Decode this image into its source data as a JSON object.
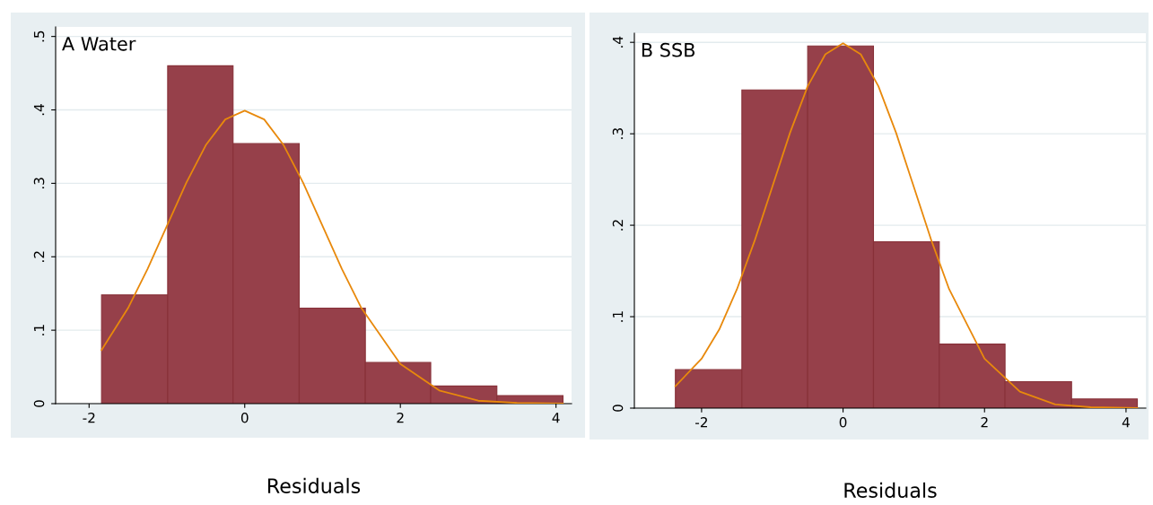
{
  "chart_data": [
    {
      "type": "histogram",
      "title": "A Water",
      "xlabel": "Residuals",
      "color": "#96404a",
      "bins": [
        -1.84,
        -0.99,
        -0.15,
        0.7,
        1.55,
        2.39,
        3.24,
        4.09
      ],
      "values": [
        0.148,
        0.46,
        0.354,
        0.13,
        0.056,
        0.024,
        0.011
      ],
      "series": [
        {
          "type": "line",
          "color": "#e8890c",
          "x": [
            -1.84,
            -1.5,
            -1.25,
            -1,
            -0.75,
            -0.5,
            -0.25,
            0,
            0.25,
            0.5,
            0.75,
            1,
            1.25,
            1.5,
            2,
            2.5,
            3,
            3.5,
            4.09
          ],
          "values": [
            0.073,
            0.13,
            0.183,
            0.242,
            0.301,
            0.352,
            0.387,
            0.399,
            0.387,
            0.352,
            0.301,
            0.242,
            0.183,
            0.13,
            0.054,
            0.018,
            0.004,
            0.001,
            0.0
          ]
        }
      ],
      "xlim": [
        -2.43,
        4.2
      ],
      "ylim": [
        0,
        0.513
      ],
      "xticks": [
        -2,
        0,
        2,
        4
      ],
      "yticks": [
        0,
        {
          "value": 0.1,
          "label": ".1"
        },
        {
          "value": 0.2,
          "label": ".2"
        },
        {
          "value": 0.3,
          "label": ".3"
        },
        {
          "value": 0.4,
          "label": ".4"
        },
        {
          "value": 0.5,
          "label": ".5"
        }
      ],
      "grid": "y",
      "legend": false,
      "marker": "none",
      "line_style": "solid"
    },
    {
      "type": "histogram",
      "title": "B SSB",
      "xlabel": "Residuals",
      "color": "#96404a",
      "bins": [
        -2.37,
        -1.43,
        -0.5,
        0.43,
        1.36,
        2.29,
        3.23,
        4.16
      ],
      "values": [
        0.042,
        0.348,
        0.396,
        0.182,
        0.07,
        0.029,
        0.01
      ],
      "series": [
        {
          "type": "line",
          "color": "#e8890c",
          "x": [
            -2.37,
            -2,
            -1.75,
            -1.5,
            -1.25,
            -1,
            -0.75,
            -0.5,
            -0.25,
            0,
            0.25,
            0.5,
            0.75,
            1,
            1.25,
            1.5,
            2,
            2.5,
            3,
            3.5,
            4.16
          ],
          "values": [
            0.024,
            0.054,
            0.086,
            0.13,
            0.183,
            0.242,
            0.301,
            0.352,
            0.387,
            0.399,
            0.387,
            0.352,
            0.301,
            0.242,
            0.183,
            0.13,
            0.054,
            0.018,
            0.004,
            0.001,
            0.0
          ]
        }
      ],
      "xlim": [
        -2.95,
        4.28
      ],
      "ylim": [
        0,
        0.41
      ],
      "xticks": [
        -2,
        0,
        2,
        4
      ],
      "yticks": [
        0,
        {
          "value": 0.1,
          "label": ".1"
        },
        {
          "value": 0.2,
          "label": ".2"
        },
        {
          "value": 0.3,
          "label": ".3"
        },
        {
          "value": 0.4,
          "label": ".4"
        }
      ],
      "grid": "y",
      "legend": false,
      "marker": "none",
      "line_style": "solid"
    }
  ]
}
